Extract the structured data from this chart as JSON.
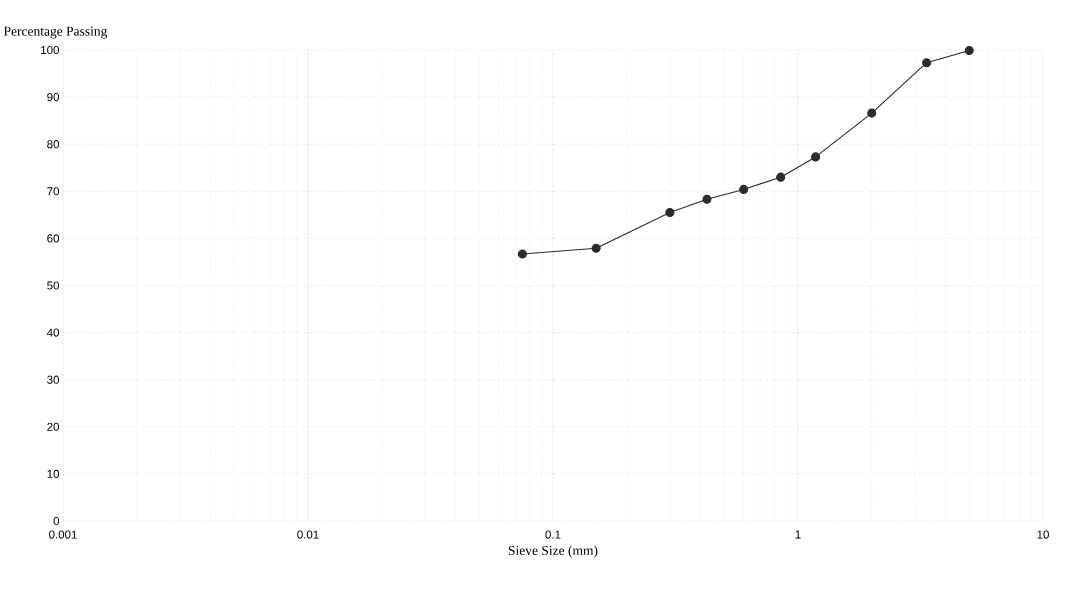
{
  "chart_data": {
    "type": "line",
    "xlabel": "Sieve Size (mm)",
    "ylabel": "Percentage Passing",
    "x": [
      0.075,
      0.15,
      0.3,
      0.425,
      0.6,
      0.85,
      1.18,
      2,
      3.35,
      5
    ],
    "series": [
      {
        "color": "#2b2b2b",
        "values": [
          56.7,
          57.9,
          65.5,
          68.3,
          70.4,
          73.0,
          77.3,
          86.6,
          97.3,
          99.9
        ]
      }
    ],
    "log": "x",
    "xlim": [
      0.001,
      10
    ],
    "xticks": [
      0.001,
      0.01,
      0.1,
      1,
      10
    ],
    "ylim": [
      0,
      100
    ],
    "yticks": [
      0,
      10,
      20,
      30,
      40,
      50,
      60,
      70,
      80,
      90,
      100
    ],
    "grid": true,
    "marker": "circle",
    "line_style": "solid"
  }
}
